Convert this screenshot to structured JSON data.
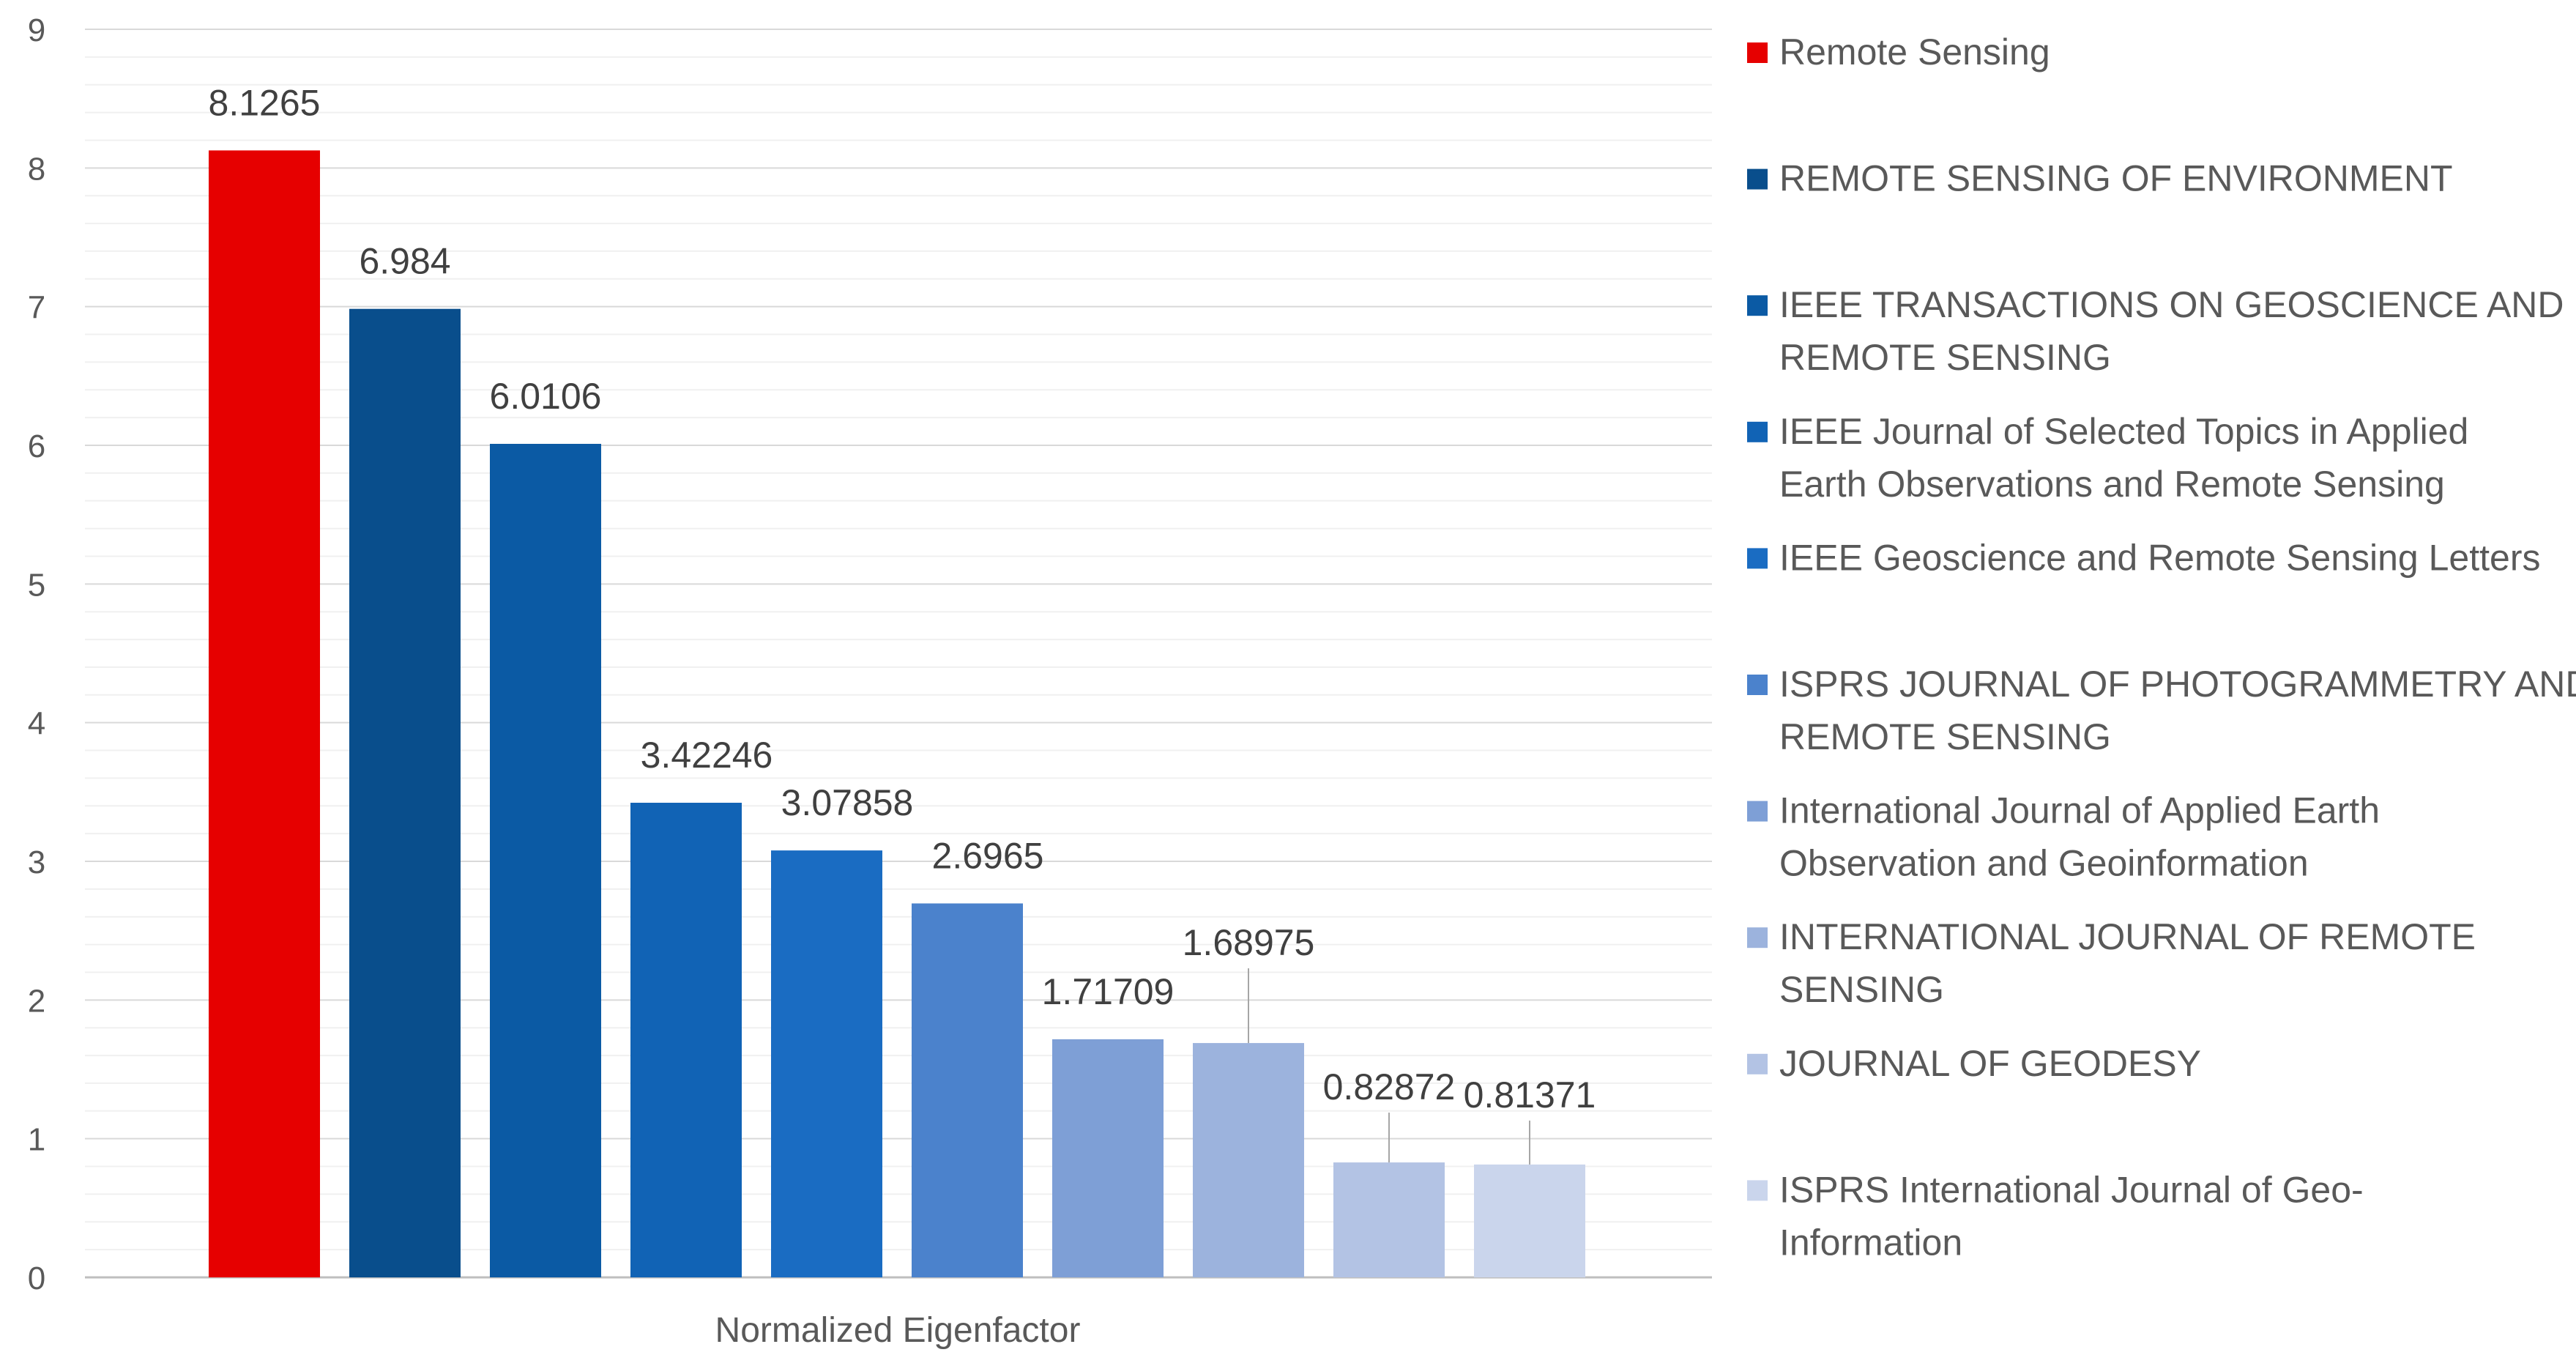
{
  "chart_data": {
    "type": "bar",
    "categories": [
      "Normalized Eigenfactor"
    ],
    "ylim": [
      0,
      9
    ],
    "yticks": [
      0,
      1,
      2,
      3,
      4,
      5,
      6,
      7,
      8,
      9
    ],
    "grid": true,
    "legend_position": "right",
    "series": [
      {
        "name": "Remote Sensing",
        "value": 8.1265,
        "label": "8.1265",
        "color": "#E60000"
      },
      {
        "name": "REMOTE SENSING OF ENVIRONMENT",
        "value": 6.984,
        "label": "6.984",
        "color": "#094E8C"
      },
      {
        "name": "IEEE TRANSACTIONS ON GEOSCIENCE AND REMOTE SENSING",
        "value": 6.0106,
        "label": "6.0106",
        "color": "#0B5AA4"
      },
      {
        "name": "IEEE Journal of Selected Topics in Applied Earth Observations and Remote Sensing",
        "value": 3.42246,
        "label": "3.42246",
        "color": "#1163B5"
      },
      {
        "name": "IEEE Geoscience and Remote Sensing Letters",
        "value": 3.07858,
        "label": "3.07858",
        "color": "#1A6CC2"
      },
      {
        "name": "ISPRS JOURNAL OF PHOTOGRAMMETRY AND REMOTE SENSING",
        "value": 2.6965,
        "label": "2.6965",
        "color": "#4B82CC"
      },
      {
        "name": "International Journal of Applied Earth Observation and Geoinformation",
        "value": 1.71709,
        "label": "1.71709",
        "color": "#7E9FD6"
      },
      {
        "name": "INTERNATIONAL JOURNAL OF REMOTE SENSING",
        "value": 1.68975,
        "label": "1.68975",
        "color": "#9CB3DD"
      },
      {
        "name": "JOURNAL OF GEODESY",
        "value": 0.82872,
        "label": "0.82872",
        "color": "#B3C3E4"
      },
      {
        "name": "ISPRS International Journal of Geo-Information",
        "value": 0.81371,
        "label": "0.81371",
        "color": "#CAD5EC"
      }
    ]
  }
}
